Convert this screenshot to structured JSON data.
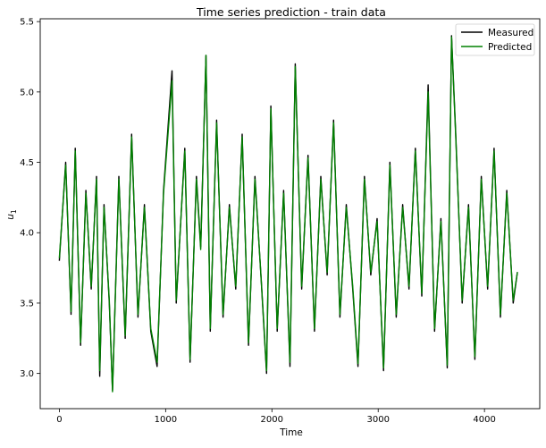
{
  "chart_data": {
    "type": "line",
    "title": "Time series prediction - train data",
    "xlabel": "Time",
    "ylabel": "u",
    "ylabel_subscript": "1",
    "xlim": [
      -180,
      4520
    ],
    "ylim": [
      2.75,
      5.52
    ],
    "x_ticks": [
      0,
      1000,
      2000,
      3000,
      4000
    ],
    "x_tick_labels": [
      "0",
      "1000",
      "2000",
      "3000",
      "4000"
    ],
    "y_ticks": [
      3.0,
      3.5,
      4.0,
      4.5,
      5.0,
      5.5
    ],
    "y_tick_labels": [
      "3.0",
      "3.5",
      "4.0",
      "4.5",
      "5.0",
      "5.5"
    ],
    "grid": false,
    "legend_position": "top-right",
    "series": [
      {
        "name": "Measured",
        "color": "#000000",
        "x": [
          0,
          60,
          110,
          150,
          200,
          250,
          300,
          350,
          380,
          420,
          470,
          500,
          560,
          620,
          680,
          740,
          800,
          860,
          920,
          980,
          1060,
          1100,
          1180,
          1230,
          1290,
          1330,
          1380,
          1420,
          1480,
          1540,
          1600,
          1660,
          1720,
          1780,
          1840,
          1900,
          1950,
          1990,
          2050,
          2110,
          2170,
          2220,
          2280,
          2340,
          2400,
          2460,
          2520,
          2580,
          2640,
          2700,
          2760,
          2810,
          2870,
          2930,
          2990,
          3050,
          3110,
          3170,
          3230,
          3290,
          3350,
          3410,
          3470,
          3530,
          3590,
          3650,
          3690,
          3730,
          3790,
          3850,
          3910,
          3970,
          4030,
          4090,
          4150,
          4210,
          4270,
          4310
        ],
        "values": [
          3.8,
          4.5,
          3.42,
          4.6,
          3.2,
          4.3,
          3.6,
          4.4,
          2.98,
          4.2,
          3.5,
          2.88,
          4.4,
          3.25,
          4.7,
          3.4,
          4.2,
          3.3,
          3.05,
          4.3,
          5.15,
          3.5,
          4.6,
          3.08,
          4.4,
          3.9,
          5.26,
          3.3,
          4.8,
          3.4,
          4.2,
          3.6,
          4.7,
          3.2,
          4.4,
          3.65,
          3.0,
          4.9,
          3.3,
          4.3,
          3.05,
          5.2,
          3.6,
          4.55,
          3.3,
          4.4,
          3.7,
          4.8,
          3.4,
          4.2,
          3.6,
          3.05,
          4.4,
          3.7,
          4.1,
          3.02,
          4.5,
          3.4,
          4.2,
          3.6,
          4.6,
          3.55,
          5.05,
          3.3,
          4.1,
          3.04,
          5.4,
          4.7,
          3.5,
          4.2,
          3.1,
          4.4,
          3.6,
          4.6,
          3.4,
          4.3,
          3.5,
          3.72
        ]
      },
      {
        "name": "Predicted",
        "color": "#008000",
        "x": [
          0,
          60,
          110,
          150,
          200,
          250,
          300,
          350,
          380,
          420,
          470,
          500,
          560,
          620,
          680,
          740,
          800,
          860,
          920,
          980,
          1060,
          1100,
          1180,
          1230,
          1290,
          1330,
          1380,
          1420,
          1480,
          1540,
          1600,
          1660,
          1720,
          1780,
          1840,
          1900,
          1950,
          1990,
          2050,
          2110,
          2170,
          2220,
          2280,
          2340,
          2400,
          2460,
          2520,
          2580,
          2640,
          2700,
          2760,
          2810,
          2870,
          2930,
          2990,
          3050,
          3110,
          3170,
          3230,
          3290,
          3350,
          3410,
          3470,
          3530,
          3590,
          3650,
          3690,
          3730,
          3790,
          3850,
          3910,
          3970,
          4030,
          4090,
          4150,
          4210,
          4270,
          4310
        ],
        "values": [
          3.82,
          4.48,
          3.44,
          4.58,
          3.22,
          4.28,
          3.62,
          4.38,
          3.02,
          4.18,
          3.52,
          2.87,
          4.38,
          3.27,
          4.68,
          3.42,
          4.18,
          3.32,
          3.08,
          4.28,
          5.08,
          3.52,
          4.58,
          3.1,
          4.38,
          3.88,
          5.26,
          3.32,
          4.78,
          3.42,
          4.18,
          3.62,
          4.68,
          3.22,
          4.38,
          3.66,
          3.02,
          4.88,
          3.32,
          4.28,
          3.08,
          5.18,
          3.62,
          4.53,
          3.32,
          4.38,
          3.72,
          4.78,
          3.42,
          4.18,
          3.62,
          3.07,
          4.38,
          3.72,
          4.08,
          3.04,
          4.48,
          3.42,
          4.18,
          3.62,
          4.58,
          3.57,
          5.0,
          3.32,
          4.08,
          3.06,
          5.39,
          4.68,
          3.52,
          4.18,
          3.12,
          4.38,
          3.62,
          4.58,
          3.42,
          4.28,
          3.52,
          3.72
        ]
      }
    ]
  }
}
